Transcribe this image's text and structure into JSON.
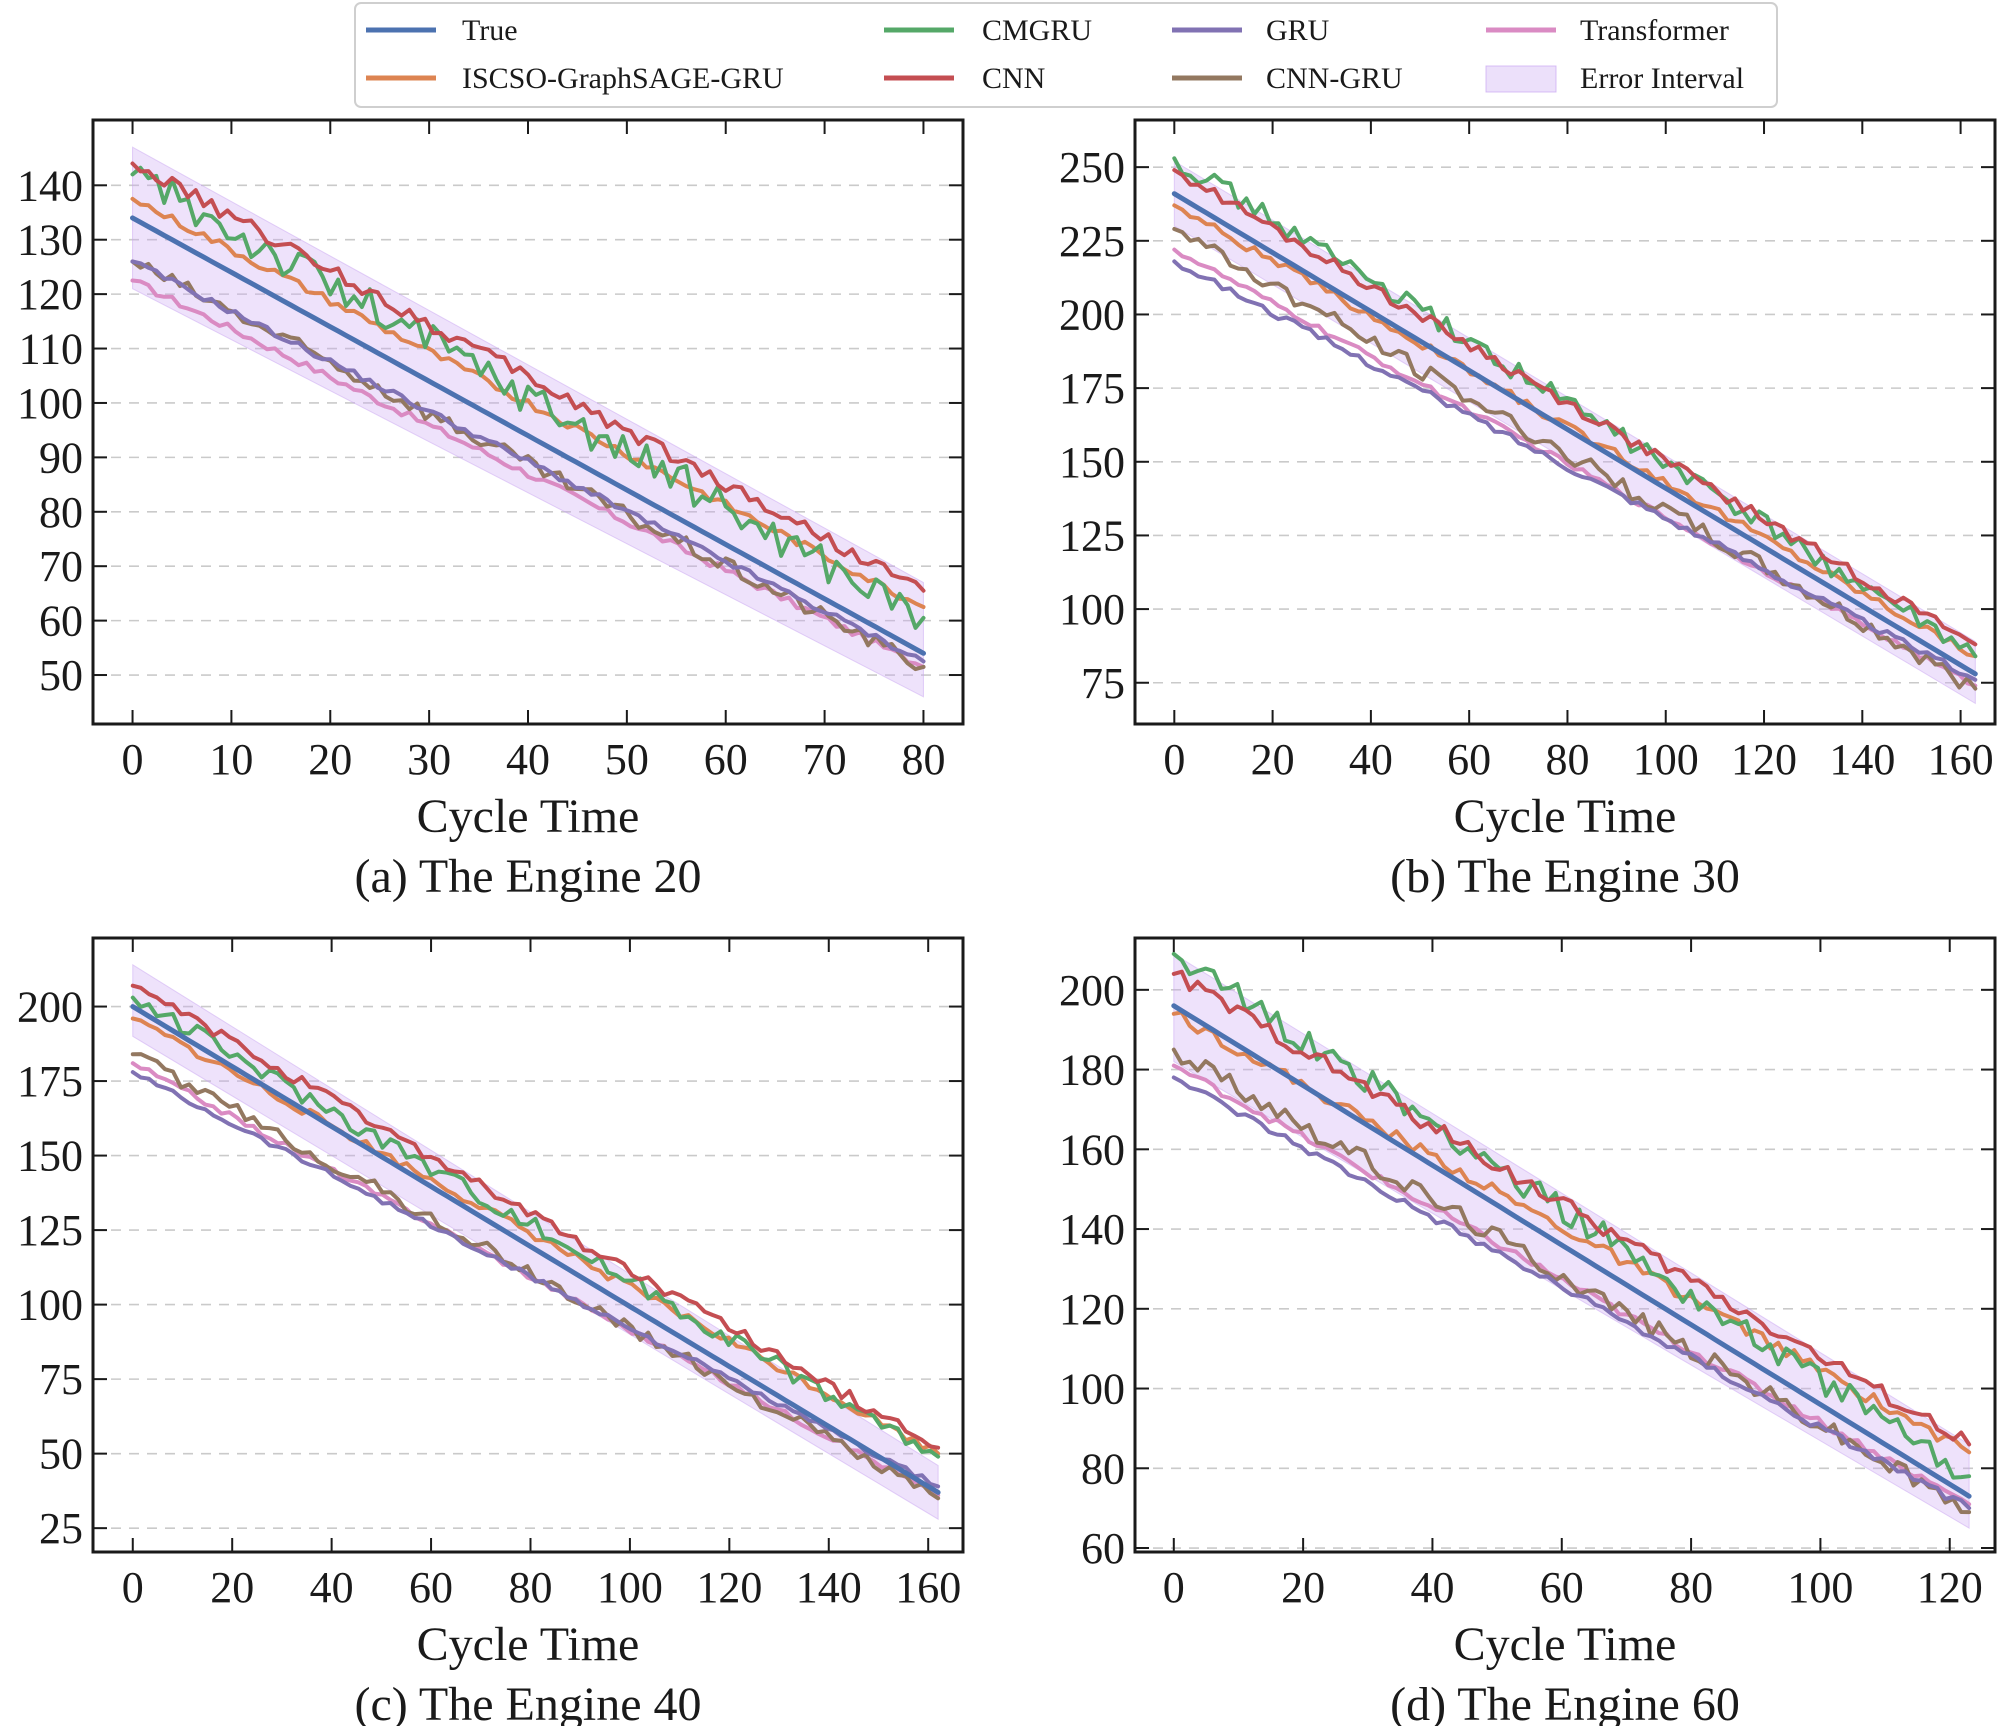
{
  "legend": [
    {
      "key": "true",
      "label": "True",
      "color": "#4c72b0"
    },
    {
      "key": "iscso",
      "label": "ISCSO-GraphSAGE-GRU",
      "color": "#dd8452"
    },
    {
      "key": "cmgru",
      "label": "CMGRU",
      "color": "#55a868"
    },
    {
      "key": "cnn",
      "label": "CNN",
      "color": "#c44e52"
    },
    {
      "key": "gru",
      "label": "GRU",
      "color": "#8172b3"
    },
    {
      "key": "cnngru",
      "label": "CNN-GRU",
      "color": "#937860"
    },
    {
      "key": "transformer",
      "label": "Transformer",
      "color": "#da8bc3"
    },
    {
      "key": "error",
      "label": "Error Interval",
      "color": "#c9a6f2"
    }
  ],
  "chart_data": [
    {
      "type": "line",
      "caption": "(a) The Engine 20",
      "xlabel": "Cycle Time",
      "ylabel": "",
      "xlim": [
        -4,
        84
      ],
      "ylim": [
        41,
        152
      ],
      "xticks": [
        0,
        10,
        20,
        30,
        40,
        50,
        60,
        70,
        80
      ],
      "yticks": [
        50,
        60,
        70,
        80,
        90,
        100,
        110,
        120,
        130,
        140
      ],
      "x_start": 0,
      "x_end": 80,
      "error_interval": {
        "upper_start": 147,
        "upper_end": 67,
        "lower_start": 121,
        "lower_end": 46
      },
      "series": [
        {
          "name": "True",
          "start": 134,
          "end": 54,
          "noise": 0
        },
        {
          "name": "ISCSO-GraphSAGE-GRU",
          "start": 137.5,
          "end": 62.5,
          "noise": 0.8
        },
        {
          "name": "CMGRU",
          "start": 142,
          "end": 60.5,
          "noise": 3.5
        },
        {
          "name": "CNN",
          "start": 144,
          "end": 65.5,
          "noise": 1.4
        },
        {
          "name": "GRU",
          "start": 126,
          "end": 52.5,
          "noise": 0.6
        },
        {
          "name": "CNN-GRU",
          "start": 126,
          "end": 51.5,
          "noise": 1.5
        },
        {
          "name": "Transformer",
          "start": 122.5,
          "end": 51.5,
          "noise": 0.7
        }
      ]
    },
    {
      "type": "line",
      "caption": "(b) The Engine 30",
      "xlabel": "Cycle Time",
      "ylabel": "",
      "xlim": [
        -8,
        167
      ],
      "ylim": [
        61,
        266
      ],
      "xticks": [
        0,
        20,
        40,
        60,
        80,
        100,
        120,
        140,
        160
      ],
      "yticks": [
        75,
        100,
        125,
        150,
        175,
        200,
        225,
        250
      ],
      "x_start": 0,
      "x_end": 163,
      "error_interval": {
        "upper_start": 252,
        "upper_end": 89,
        "lower_start": 230,
        "lower_end": 68
      },
      "series": [
        {
          "name": "True",
          "start": 241,
          "end": 78,
          "noise": 0
        },
        {
          "name": "ISCSO-GraphSAGE-GRU",
          "start": 237,
          "end": 84,
          "noise": 1.5
        },
        {
          "name": "CMGRU",
          "start": 253,
          "end": 84,
          "noise": 3.5
        },
        {
          "name": "CNN",
          "start": 249,
          "end": 88,
          "noise": 2.0
        },
        {
          "name": "GRU",
          "start": 218,
          "end": 76,
          "noise": 1.2
        },
        {
          "name": "CNN-GRU",
          "start": 229,
          "end": 73,
          "noise": 3.0
        },
        {
          "name": "Transformer",
          "start": 222,
          "end": 74,
          "noise": 1.0
        }
      ]
    },
    {
      "type": "line",
      "caption": "(c) The Engine 40",
      "xlabel": "Cycle Time",
      "ylabel": "",
      "xlim": [
        -8,
        167
      ],
      "ylim": [
        17,
        223
      ],
      "xticks": [
        0,
        20,
        40,
        60,
        80,
        100,
        120,
        140,
        160
      ],
      "yticks": [
        25,
        50,
        75,
        100,
        125,
        150,
        175,
        200
      ],
      "x_start": 0,
      "x_end": 162,
      "error_interval": {
        "upper_start": 214,
        "upper_end": 46,
        "lower_start": 190,
        "lower_end": 28
      },
      "series": [
        {
          "name": "True",
          "start": 200,
          "end": 37,
          "noise": 0
        },
        {
          "name": "ISCSO-GraphSAGE-GRU",
          "start": 196,
          "end": 50,
          "noise": 1.5
        },
        {
          "name": "CMGRU",
          "start": 203,
          "end": 49,
          "noise": 3.0
        },
        {
          "name": "CNN",
          "start": 207,
          "end": 52,
          "noise": 2.0
        },
        {
          "name": "GRU",
          "start": 178,
          "end": 39,
          "noise": 1.0
        },
        {
          "name": "CNN-GRU",
          "start": 184,
          "end": 35,
          "noise": 2.5
        },
        {
          "name": "Transformer",
          "start": 181,
          "end": 36,
          "noise": 1.0
        }
      ]
    },
    {
      "type": "line",
      "caption": "(d) The Engine 60",
      "xlabel": "Cycle Time",
      "ylabel": "",
      "xlim": [
        -6,
        127
      ],
      "ylim": [
        59,
        213
      ],
      "xticks": [
        0,
        20,
        40,
        60,
        80,
        100,
        120
      ],
      "yticks": [
        60,
        80,
        100,
        120,
        140,
        160,
        180,
        200
      ],
      "x_start": 0,
      "x_end": 123,
      "error_interval": {
        "upper_start": 209,
        "upper_end": 86,
        "lower_start": 182,
        "lower_end": 65
      },
      "series": [
        {
          "name": "True",
          "start": 196,
          "end": 73,
          "noise": 0
        },
        {
          "name": "ISCSO-GraphSAGE-GRU",
          "start": 194,
          "end": 84,
          "noise": 1.5
        },
        {
          "name": "CMGRU",
          "start": 209,
          "end": 78,
          "noise": 3.5
        },
        {
          "name": "CNN",
          "start": 204,
          "end": 86,
          "noise": 2.0
        },
        {
          "name": "GRU",
          "start": 178,
          "end": 70,
          "noise": 1.0
        },
        {
          "name": "CNN-GRU",
          "start": 185,
          "end": 69,
          "noise": 2.5
        },
        {
          "name": "Transformer",
          "start": 181,
          "end": 71,
          "noise": 1.0
        }
      ]
    }
  ]
}
